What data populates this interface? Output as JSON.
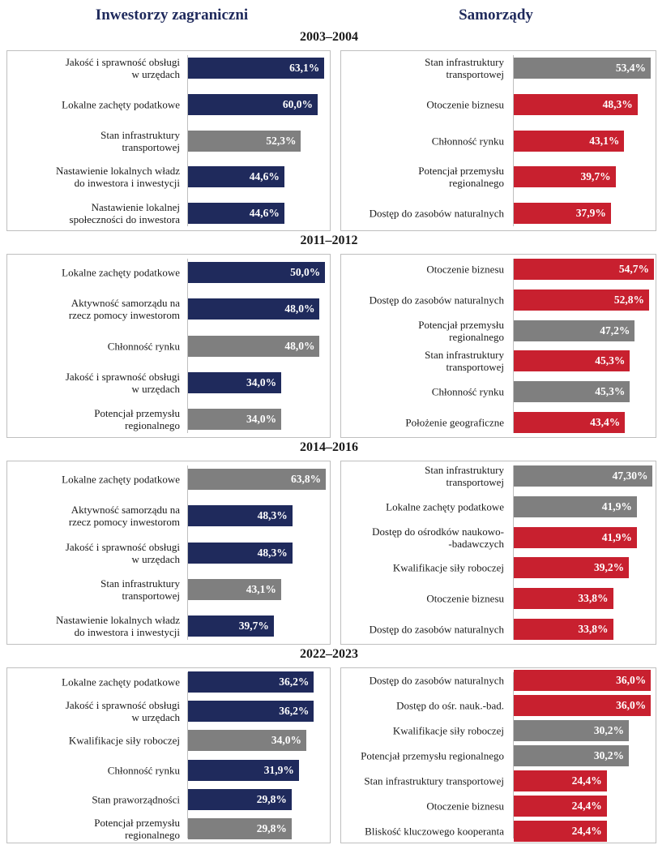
{
  "columns": [
    "Inwestorzy zagraniczni",
    "Samorządy"
  ],
  "periods": [
    "2003–2004",
    "2011–2012",
    "2014–2016",
    "2022–2023"
  ],
  "chart_data": [
    {
      "type": "barh",
      "categories": [
        "Jakość i sprawność obsługi\nw urzędach",
        "Lokalne zachęty podatkowe",
        "Stan infrastruktury\ntransportowej",
        "Nastawienie lokalnych władz\ndo inwestora i inwestycji",
        "Nastawienie lokalnej\nspołeczności do inwestora"
      ],
      "values": [
        63.1,
        60.0,
        52.3,
        44.6,
        44.6
      ],
      "value_labels": [
        "63,1%",
        "60,0%",
        "52,3%",
        "44,6%",
        "44,6%"
      ],
      "colors": [
        "#1f2a5c",
        "#1f2a5c",
        "#7f7f7f",
        "#1f2a5c",
        "#1f2a5c"
      ],
      "xlim": [
        0,
        66
      ]
    },
    {
      "type": "barh",
      "categories": [
        "Stan infrastruktury\ntransportowej",
        "Otoczenie biznesu",
        "Chłonność rynku",
        "Potencjał przemysłu\nregionalnego",
        "Dostęp do zasobów naturalnych"
      ],
      "values": [
        53.4,
        48.3,
        43.1,
        39.7,
        37.9
      ],
      "value_labels": [
        "53,4%",
        "48,3%",
        "43,1%",
        "39,7%",
        "37,9%"
      ],
      "colors": [
        "#7f7f7f",
        "#c8202f",
        "#c8202f",
        "#c8202f",
        "#c8202f"
      ],
      "xlim": [
        0,
        55
      ]
    },
    {
      "type": "barh",
      "categories": [
        "Lokalne zachęty podatkowe",
        "Aktywność samorządu na\nrzecz pomocy inwestorom",
        "Chłonność rynku",
        "Jakość i sprawność obsługi\nw urzędach",
        "Potencjał przemysłu\nregionalnego"
      ],
      "values": [
        50.0,
        48.0,
        48.0,
        34.0,
        34.0
      ],
      "value_labels": [
        "50,0%",
        "48,0%",
        "48,0%",
        "34,0%",
        "34,0%"
      ],
      "colors": [
        "#1f2a5c",
        "#1f2a5c",
        "#7f7f7f",
        "#1f2a5c",
        "#7f7f7f"
      ],
      "xlim": [
        0,
        52
      ]
    },
    {
      "type": "barh",
      "categories": [
        "Otoczenie biznesu",
        "Dostęp do zasobów naturalnych",
        "Potencjał przemysłu\nregionalnego",
        "Stan infrastruktury\ntransportowej",
        "Chłonność rynku",
        "Położenie geograficzne"
      ],
      "values": [
        54.7,
        52.8,
        47.2,
        45.3,
        45.3,
        43.4
      ],
      "value_labels": [
        "54,7%",
        "52,8%",
        "47,2%",
        "45,3%",
        "45,3%",
        "43,4%"
      ],
      "colors": [
        "#c8202f",
        "#c8202f",
        "#7f7f7f",
        "#c8202f",
        "#7f7f7f",
        "#c8202f"
      ],
      "xlim": [
        0,
        55
      ]
    },
    {
      "type": "barh",
      "categories": [
        "Lokalne zachęty podatkowe",
        "Aktywność samorządu na\nrzecz pomocy inwestorom",
        "Jakość i sprawność obsługi\nw urzędach",
        "Stan infrastruktury\ntransportowej",
        "Nastawienie lokalnych władz\ndo inwestora i inwestycji"
      ],
      "values": [
        63.8,
        48.3,
        48.3,
        43.1,
        39.7
      ],
      "value_labels": [
        "63,8%",
        "48,3%",
        "48,3%",
        "43,1%",
        "39,7%"
      ],
      "colors": [
        "#7f7f7f",
        "#1f2a5c",
        "#1f2a5c",
        "#7f7f7f",
        "#1f2a5c"
      ],
      "xlim": [
        0,
        66
      ]
    },
    {
      "type": "barh",
      "categories": [
        "Stan infrastruktury\ntransportowej",
        "Lokalne zachęty podatkowe",
        "Dostęp do ośrodków naukowo-\n-badawczych",
        "Kwalifikacje siły roboczej",
        "Otoczenie biznesu",
        "Dostęp do zasobów naturalnych"
      ],
      "values": [
        47.3,
        41.9,
        41.9,
        39.2,
        33.8,
        33.8
      ],
      "value_labels": [
        "47,30%",
        "41,9%",
        "41,9%",
        "39,2%",
        "33,8%",
        "33,8%"
      ],
      "colors": [
        "#7f7f7f",
        "#7f7f7f",
        "#c8202f",
        "#c8202f",
        "#c8202f",
        "#c8202f"
      ],
      "xlim": [
        0,
        48
      ]
    },
    {
      "type": "barh",
      "categories": [
        "Lokalne zachęty podatkowe",
        "Jakość i sprawność obsługi\nw urzędach",
        "Kwalifikacje siły roboczej",
        "Chłonność rynku",
        "Stan praworządności",
        "Potencjał przemysłu\nregionalnego"
      ],
      "values": [
        36.2,
        36.2,
        34.0,
        31.9,
        29.8,
        29.8
      ],
      "value_labels": [
        "36,2%",
        "36,2%",
        "34,0%",
        "31,9%",
        "29,8%",
        "29,8%"
      ],
      "colors": [
        "#1f2a5c",
        "#1f2a5c",
        "#7f7f7f",
        "#1f2a5c",
        "#1f2a5c",
        "#7f7f7f"
      ],
      "xlim": [
        0,
        41
      ]
    },
    {
      "type": "barh",
      "categories": [
        "Dostęp do zasobów naturalnych",
        "Dostęp do ośr. nauk.-bad.",
        "Kwalifikacje siły roboczej",
        "Potencjał przemysłu regionalnego",
        "Stan infrastruktury transportowej",
        "Otoczenie biznesu",
        "Bliskość kluczowego kooperanta"
      ],
      "values": [
        36.0,
        36.0,
        30.2,
        30.2,
        24.4,
        24.4,
        24.4
      ],
      "value_labels": [
        "36,0%",
        "36,0%",
        "30,2%",
        "30,2%",
        "24,4%",
        "24,4%",
        "24,4%"
      ],
      "colors": [
        "#c8202f",
        "#c8202f",
        "#7f7f7f",
        "#7f7f7f",
        "#c8202f",
        "#c8202f",
        "#c8202f"
      ],
      "xlim": [
        0,
        37
      ]
    }
  ]
}
